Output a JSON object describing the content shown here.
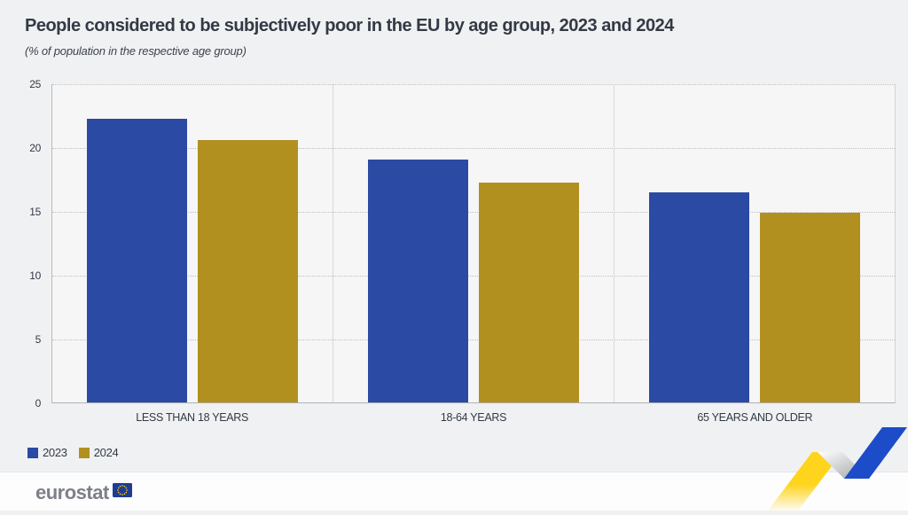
{
  "header": {
    "title": "People considered to be subjectively poor in the EU by age group, 2023 and 2024",
    "subtitle": "(% of population in the respective age group)"
  },
  "chart_data": {
    "type": "bar",
    "categories": [
      "LESS THAN 18 YEARS",
      "18-64 YEARS",
      "65 YEARS AND OLDER"
    ],
    "series": [
      {
        "name": "2023",
        "color": "#2b4aa3",
        "values": [
          22.3,
          19.1,
          16.5
        ]
      },
      {
        "name": "2024",
        "color": "#b2901f",
        "values": [
          20.6,
          17.3,
          14.9
        ]
      }
    ],
    "title": "People considered to be subjectively poor in the EU by age group, 2023 and 2024",
    "xlabel": "",
    "ylabel": "% of population in the respective age group",
    "ylim": [
      0,
      25
    ],
    "yticks": [
      25,
      20,
      15,
      10,
      5,
      0
    ],
    "grid": "horizontal-dotted",
    "group_separators": true,
    "legend_position": "bottom-left"
  },
  "legend": {
    "items": [
      {
        "label": "2023",
        "color": "#2b4aa3"
      },
      {
        "label": "2024",
        "color": "#b2901f"
      }
    ]
  },
  "footer": {
    "logo_text": "eurostat"
  },
  "colors": {
    "page_background": "#f0f1f2",
    "plot_background": "#f6f6f7",
    "title_text": "#333a46",
    "bar_2023": "#2b4aa3",
    "bar_2024": "#b2901f",
    "ribbon_yellow": "#ffd41c",
    "ribbon_blue": "#1c4cc8",
    "flag_blue": "#1f3c92",
    "logo_gray": "#7d8089"
  }
}
